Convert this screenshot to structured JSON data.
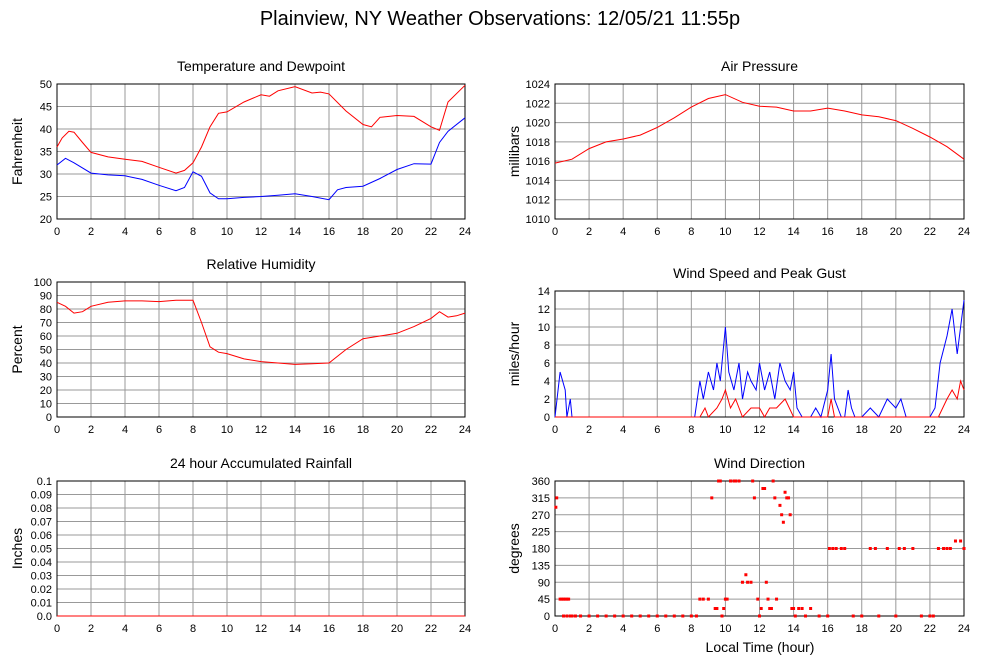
{
  "title": "Plainview, NY Weather Observations: 12/05/21 11:55p",
  "xlabel_bottom": "Local Time (hour)",
  "colors": {
    "red": "#ff0000",
    "blue": "#0000ff",
    "grid": "#999999"
  },
  "chart_data": [
    {
      "type": "line",
      "title": "Temperature and Dewpoint",
      "ylabel": "Fahrenheit",
      "xlim": [
        0,
        24
      ],
      "ylim": [
        20,
        50
      ],
      "yticks": [
        20,
        25,
        30,
        35,
        40,
        45,
        50
      ],
      "xticks": [
        0,
        2,
        4,
        6,
        8,
        10,
        12,
        14,
        16,
        18,
        20,
        22,
        24
      ],
      "grid": true,
      "series": [
        {
          "color": "#ff0000",
          "x": [
            0,
            0.3,
            0.7,
            1,
            1.5,
            2,
            3,
            4,
            5,
            6,
            7,
            7.5,
            8,
            8.5,
            9,
            9.5,
            10,
            11,
            12,
            12.5,
            13,
            14,
            15,
            15.5,
            16,
            17,
            18,
            18.5,
            19,
            20,
            21,
            22,
            22.5,
            23,
            24
          ],
          "y": [
            36,
            38,
            39.5,
            39.3,
            37,
            34.8,
            33.8,
            33.3,
            32.8,
            31.5,
            30.2,
            30.8,
            32.5,
            36,
            40.5,
            43.5,
            43.8,
            46,
            47.6,
            47.3,
            48.5,
            49.4,
            48,
            48.2,
            47.8,
            44,
            41,
            40.5,
            42.6,
            43,
            42.8,
            40.5,
            39.7,
            46,
            49.7
          ]
        },
        {
          "color": "#0000ff",
          "x": [
            0,
            0.5,
            1,
            2,
            3,
            4,
            5,
            6,
            7,
            7.5,
            8,
            8.5,
            9,
            9.5,
            10,
            11,
            12,
            13,
            14,
            15,
            16,
            16.5,
            17,
            18,
            19,
            20,
            21,
            22,
            22.5,
            23,
            24
          ],
          "y": [
            32,
            33.5,
            32.5,
            30.2,
            29.8,
            29.6,
            28.8,
            27.5,
            26.3,
            27,
            30.5,
            29.5,
            25.8,
            24.5,
            24.5,
            24.8,
            25,
            25.3,
            25.6,
            25,
            24.3,
            26.5,
            27,
            27.3,
            29,
            31,
            32.3,
            32.2,
            37,
            39.5,
            42.5
          ]
        }
      ]
    },
    {
      "type": "line",
      "title": "Air Pressure",
      "ylabel": "millibars",
      "xlim": [
        0,
        24
      ],
      "ylim": [
        1010,
        1024
      ],
      "yticks": [
        1010,
        1012,
        1014,
        1016,
        1018,
        1020,
        1022,
        1024
      ],
      "xticks": [
        0,
        2,
        4,
        6,
        8,
        10,
        12,
        14,
        16,
        18,
        20,
        22,
        24
      ],
      "grid": true,
      "series": [
        {
          "color": "#ff0000",
          "x": [
            0,
            1,
            2,
            3,
            4,
            5,
            6,
            7,
            8,
            9,
            10,
            11,
            12,
            13,
            14,
            15,
            16,
            17,
            18,
            19,
            20,
            21,
            22,
            23,
            24
          ],
          "y": [
            1015.8,
            1016.2,
            1017.3,
            1018,
            1018.3,
            1018.7,
            1019.5,
            1020.5,
            1021.6,
            1022.5,
            1022.9,
            1022.1,
            1021.7,
            1021.6,
            1021.2,
            1021.2,
            1021.5,
            1021.2,
            1020.8,
            1020.6,
            1020.2,
            1019.4,
            1018.5,
            1017.5,
            1016.2
          ]
        }
      ]
    },
    {
      "type": "line",
      "title": "Relative Humidity",
      "ylabel": "Percent",
      "xlim": [
        0,
        24
      ],
      "ylim": [
        0,
        100
      ],
      "yticks": [
        0,
        10,
        20,
        30,
        40,
        50,
        60,
        70,
        80,
        90,
        100
      ],
      "xticks": [
        0,
        2,
        4,
        6,
        8,
        10,
        12,
        14,
        16,
        18,
        20,
        22,
        24
      ],
      "grid": true,
      "series": [
        {
          "color": "#ff0000",
          "x": [
            0,
            0.5,
            1,
            1.5,
            2,
            3,
            4,
            5,
            6,
            7,
            8,
            8.5,
            9,
            9.5,
            10,
            11,
            12,
            13,
            14,
            15,
            16,
            17,
            18,
            19,
            20,
            21,
            22,
            22.5,
            23,
            23.5,
            24
          ],
          "y": [
            85,
            82,
            77,
            78,
            82,
            85,
            86,
            86,
            85.5,
            86.5,
            86.5,
            70,
            52,
            48,
            47,
            43,
            41,
            40,
            39,
            39.5,
            40,
            50,
            58,
            60,
            62,
            67,
            73,
            78,
            74,
            75,
            77
          ]
        }
      ]
    },
    {
      "type": "line",
      "title": "Wind Speed and Peak Gust",
      "ylabel": "miles/hour",
      "xlim": [
        0,
        24
      ],
      "ylim": [
        0,
        14
      ],
      "yticks": [
        0,
        2,
        4,
        6,
        8,
        10,
        12,
        14
      ],
      "xticks": [
        0,
        2,
        4,
        6,
        8,
        10,
        12,
        14,
        16,
        18,
        20,
        22,
        24
      ],
      "grid": true,
      "series": [
        {
          "color": "#0000ff",
          "x": [
            0,
            0.3,
            0.6,
            0.7,
            0.9,
            1,
            8.2,
            8.5,
            8.7,
            9,
            9.3,
            9.5,
            9.7,
            9.9,
            10,
            10.2,
            10.5,
            10.8,
            11,
            11.3,
            11.5,
            11.8,
            12,
            12.3,
            12.6,
            12.9,
            13.2,
            13.5,
            13.8,
            14,
            14.2,
            14.5,
            15,
            15.3,
            15.6,
            16,
            16.2,
            16.4,
            16.6,
            16.8,
            17,
            17.2,
            17.4,
            17.6,
            18,
            18.5,
            19,
            19.5,
            20,
            20.3,
            20.6,
            21,
            22,
            22.3,
            22.6,
            23,
            23.3,
            23.6,
            24
          ],
          "y": [
            0,
            5,
            3,
            0,
            2,
            0,
            0,
            4,
            2,
            5,
            3,
            6,
            4,
            8,
            10,
            5,
            3,
            6,
            2,
            5,
            4,
            3,
            6,
            3,
            5,
            2,
            6,
            4,
            3,
            5,
            1,
            0,
            0,
            1,
            0,
            3,
            7,
            2,
            1,
            0,
            0,
            3,
            1,
            0,
            0,
            1,
            0,
            2,
            1,
            2,
            0,
            0,
            0,
            1,
            6,
            9,
            12,
            7,
            13
          ]
        },
        {
          "color": "#ff0000",
          "x": [
            0,
            8.5,
            8.8,
            9,
            9.5,
            9.8,
            10,
            10.3,
            10.6,
            11,
            11.5,
            12,
            12.3,
            12.6,
            13,
            13.5,
            14,
            16,
            16.2,
            16.4,
            20,
            22.5,
            23,
            23.3,
            23.6,
            23.8,
            24
          ],
          "y": [
            0,
            0,
            1,
            0,
            1,
            2,
            3,
            1,
            2,
            0,
            1,
            1,
            0,
            1,
            1,
            2,
            0,
            0,
            2,
            0,
            0,
            0,
            2,
            3,
            2,
            4,
            3
          ]
        }
      ]
    },
    {
      "type": "line",
      "title": "24 hour Accumulated Rainfall",
      "ylabel": "Inches",
      "xlim": [
        0,
        24
      ],
      "ylim": [
        0,
        0.1
      ],
      "yticks": [
        "0.0",
        "0.01",
        "0.02",
        "0.03",
        "0.04",
        "0.05",
        "0.06",
        "0.07",
        "0.08",
        "0.09",
        "0.1"
      ],
      "xticks": [
        0,
        2,
        4,
        6,
        8,
        10,
        12,
        14,
        16,
        18,
        20,
        22,
        24
      ],
      "grid": true,
      "series": [
        {
          "color": "#ff0000",
          "x": [
            0,
            24
          ],
          "y": [
            0,
            0
          ]
        }
      ]
    },
    {
      "type": "scatter",
      "title": "Wind Direction",
      "ylabel": "degrees",
      "xlim": [
        0,
        24
      ],
      "ylim": [
        0,
        360
      ],
      "yticks": [
        0,
        45,
        90,
        135,
        180,
        225,
        270,
        315,
        360
      ],
      "xticks": [
        0,
        2,
        4,
        6,
        8,
        10,
        12,
        14,
        16,
        18,
        20,
        22,
        24
      ],
      "grid": true,
      "series": [
        {
          "color": "#ff0000",
          "x": [
            0.05,
            0.1,
            0.3,
            0.4,
            0.5,
            0.6,
            0.7,
            0.8,
            0.5,
            0.7,
            0.9,
            1.0,
            1.2,
            1.5,
            2,
            2.5,
            3,
            3.5,
            4,
            4.5,
            5,
            5.5,
            6,
            6.5,
            7,
            7.5,
            8,
            8.3,
            8.5,
            8.7,
            9,
            9.2,
            9.4,
            9.5,
            9.6,
            9.7,
            9.8,
            9.9,
            10,
            10.1,
            10.3,
            10.5,
            10.6,
            10.8,
            11,
            11.2,
            11.3,
            11.5,
            11.6,
            11.7,
            11.9,
            12,
            12.1,
            12.2,
            12.3,
            12.4,
            12.5,
            12.6,
            12.7,
            12.8,
            12.9,
            13,
            13.2,
            13.3,
            13.4,
            13.5,
            13.6,
            13.7,
            13.8,
            13.9,
            14,
            14.1,
            14.3,
            14.5,
            14.7,
            15,
            15.5,
            16,
            16.1,
            16.3,
            16.5,
            16.8,
            17,
            17.5,
            18,
            18.5,
            18.8,
            19,
            19.5,
            20,
            20.2,
            20.5,
            21,
            21.5,
            22,
            22.2,
            22.5,
            22.8,
            23,
            23.2,
            23.5,
            23.8,
            24
          ],
          "y": [
            290,
            315,
            45,
            45,
            45,
            45,
            45,
            45,
            0,
            0,
            0,
            0,
            0,
            0,
            0,
            0,
            0,
            0,
            0,
            0,
            0,
            0,
            0,
            0,
            0,
            0,
            0,
            0,
            45,
            45,
            45,
            315,
            20,
            20,
            360,
            360,
            0,
            20,
            45,
            45,
            360,
            360,
            360,
            360,
            90,
            110,
            90,
            90,
            360,
            315,
            45,
            0,
            20,
            340,
            340,
            90,
            45,
            20,
            20,
            360,
            315,
            45,
            295,
            270,
            250,
            330,
            315,
            315,
            270,
            20,
            20,
            0,
            20,
            20,
            0,
            20,
            0,
            0,
            180,
            180,
            180,
            180,
            180,
            0,
            0,
            180,
            180,
            0,
            180,
            0,
            180,
            180,
            180,
            0,
            0,
            0,
            180,
            180,
            180,
            180,
            200,
            200,
            180
          ]
        }
      ]
    }
  ]
}
